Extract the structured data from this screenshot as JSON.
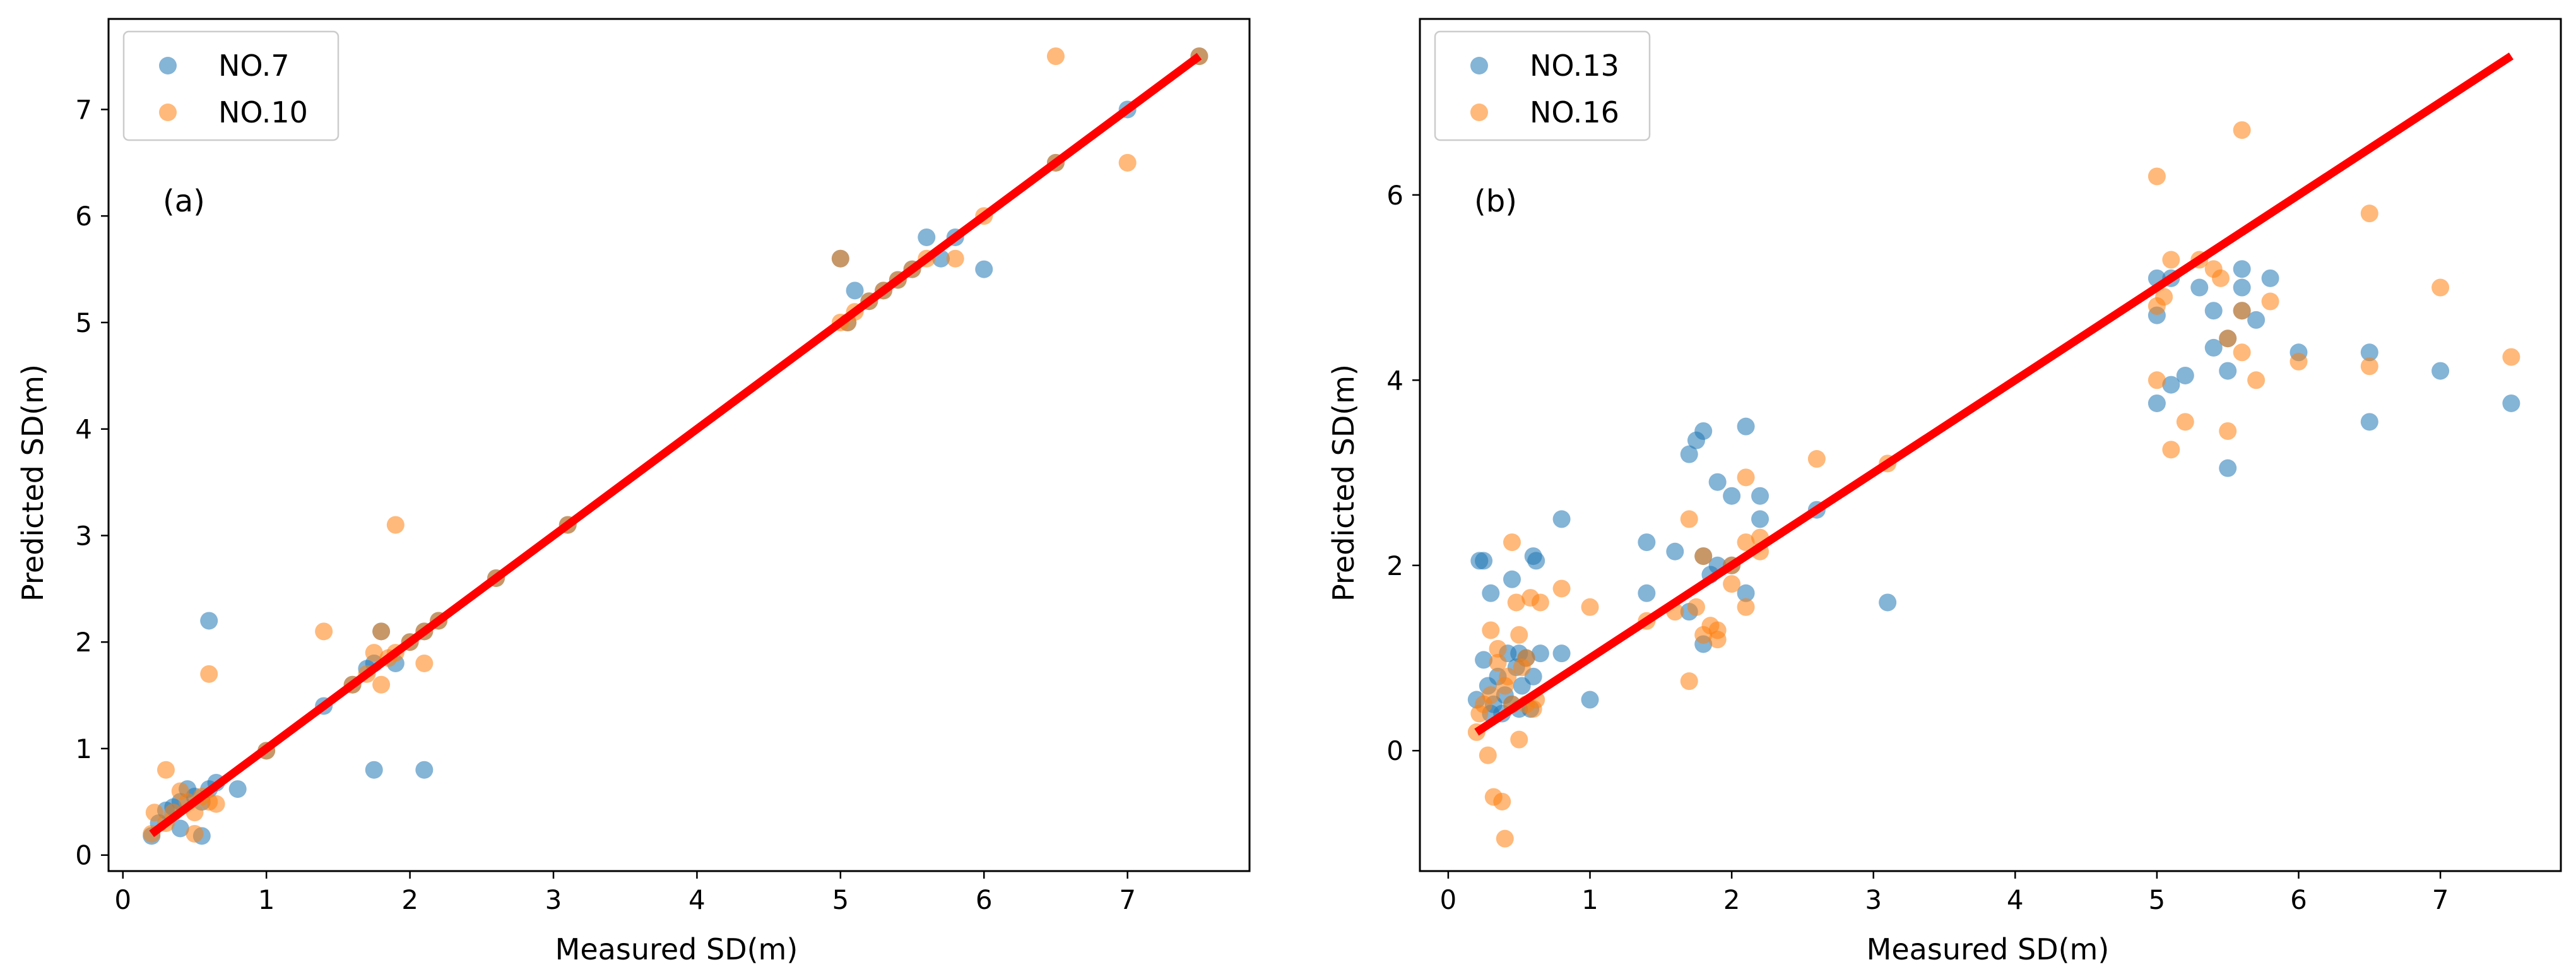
{
  "colors": {
    "series_a": "#1f77b4",
    "series_b": "#ff7f0e",
    "fit_line": "#ff0000"
  },
  "chart_data": [
    {
      "type": "scatter",
      "panel_label": "(a)",
      "xlabel": "Measured SD(m)",
      "ylabel": "Predicted SD(m)",
      "xlim": [
        -0.1,
        7.85
      ],
      "ylim": [
        -0.15,
        7.85
      ],
      "xticks": [
        0,
        1,
        2,
        3,
        4,
        5,
        6,
        7
      ],
      "yticks": [
        0,
        1,
        2,
        3,
        4,
        5,
        6,
        7
      ],
      "fit_line": {
        "x": [
          0.2,
          7.5
        ],
        "y": [
          0.2,
          7.5
        ]
      },
      "legend": "top-left",
      "series": [
        {
          "name": "NO.7",
          "x": [
            0.2,
            0.25,
            0.3,
            0.35,
            0.4,
            0.45,
            0.5,
            0.55,
            0.6,
            0.65,
            0.6,
            0.4,
            0.55,
            0.8,
            1.0,
            1.4,
            1.6,
            1.7,
            1.75,
            1.8,
            1.9,
            2.0,
            2.1,
            2.2,
            1.75,
            2.1,
            2.6,
            3.1,
            5.0,
            5.05,
            5.1,
            5.2,
            5.3,
            5.4,
            5.5,
            5.6,
            5.7,
            5.8,
            6.0,
            6.5,
            7.0,
            7.5
          ],
          "y": [
            0.18,
            0.3,
            0.42,
            0.45,
            0.5,
            0.62,
            0.55,
            0.5,
            0.62,
            0.68,
            2.2,
            0.25,
            0.18,
            0.62,
            0.98,
            1.4,
            1.6,
            1.75,
            1.8,
            2.1,
            1.8,
            2.0,
            2.1,
            2.2,
            0.8,
            0.8,
            2.6,
            3.1,
            5.6,
            5.0,
            5.3,
            5.2,
            5.3,
            5.4,
            5.5,
            5.8,
            5.6,
            5.8,
            5.5,
            6.5,
            7.0,
            7.5
          ]
        },
        {
          "name": "NO.10",
          "x": [
            0.2,
            0.22,
            0.3,
            0.35,
            0.4,
            0.45,
            0.5,
            0.55,
            0.6,
            0.65,
            0.3,
            0.6,
            0.5,
            1.0,
            1.4,
            1.6,
            1.7,
            1.75,
            1.8,
            1.85,
            1.9,
            2.0,
            2.1,
            2.1,
            2.2,
            1.9,
            1.8,
            2.6,
            3.1,
            5.0,
            5.0,
            5.05,
            5.1,
            5.2,
            5.3,
            5.4,
            5.5,
            5.6,
            5.8,
            6.0,
            6.5,
            6.5,
            7.0,
            7.5
          ],
          "y": [
            0.2,
            0.4,
            0.3,
            0.4,
            0.6,
            0.5,
            0.4,
            0.55,
            0.5,
            0.48,
            0.8,
            1.7,
            0.2,
            0.98,
            2.1,
            1.6,
            1.7,
            1.9,
            1.6,
            1.85,
            3.1,
            2.0,
            2.1,
            1.8,
            2.2,
            1.9,
            2.1,
            2.6,
            3.1,
            5.6,
            5.0,
            5.0,
            5.1,
            5.2,
            5.3,
            5.4,
            5.5,
            5.6,
            5.6,
            6.0,
            6.5,
            7.5,
            6.5,
            7.5
          ]
        }
      ]
    },
    {
      "type": "scatter",
      "panel_label": "(b)",
      "xlabel": "Measured SD(m)",
      "ylabel": "Predicted SD(m)",
      "xlim": [
        -0.2,
        7.85
      ],
      "ylim": [
        -1.3,
        7.9
      ],
      "xticks": [
        0,
        1,
        2,
        3,
        4,
        5,
        6,
        7
      ],
      "yticks": [
        0,
        2,
        4,
        6
      ],
      "fit_line": {
        "x": [
          0.2,
          7.5
        ],
        "y": [
          0.2,
          7.5
        ]
      },
      "legend": "top-left",
      "series": [
        {
          "name": "NO.13",
          "x": [
            0.2,
            0.22,
            0.25,
            0.25,
            0.28,
            0.3,
            0.32,
            0.35,
            0.38,
            0.4,
            0.42,
            0.45,
            0.48,
            0.5,
            0.52,
            0.55,
            0.58,
            0.6,
            0.62,
            0.65,
            0.3,
            0.45,
            0.5,
            0.6,
            0.8,
            1.0,
            0.8,
            1.4,
            1.4,
            1.6,
            1.7,
            1.7,
            1.75,
            1.8,
            1.8,
            1.85,
            1.9,
            1.9,
            2.0,
            2.0,
            2.1,
            2.1,
            2.2,
            2.2,
            1.8,
            2.6,
            3.1,
            5.0,
            5.0,
            5.0,
            5.1,
            5.1,
            5.2,
            5.3,
            5.4,
            5.4,
            5.5,
            5.5,
            5.5,
            5.6,
            5.6,
            5.6,
            5.7,
            5.8,
            6.0,
            6.5,
            6.5,
            7.0,
            7.5
          ],
          "y": [
            0.55,
            2.05,
            0.98,
            2.05,
            0.7,
            1.7,
            0.5,
            0.8,
            0.4,
            0.6,
            1.05,
            0.5,
            0.9,
            0.45,
            0.7,
            1.0,
            0.45,
            2.1,
            2.05,
            1.05,
            0.4,
            1.85,
            1.05,
            0.8,
            2.5,
            0.55,
            1.05,
            2.25,
            1.7,
            2.15,
            3.2,
            1.5,
            3.35,
            3.45,
            2.1,
            1.9,
            2.9,
            2.0,
            2.75,
            2.0,
            3.5,
            1.7,
            2.75,
            2.5,
            1.15,
            2.6,
            1.6,
            5.1,
            4.7,
            3.75,
            5.1,
            3.95,
            4.05,
            5.0,
            4.75,
            4.35,
            4.45,
            3.05,
            4.1,
            5.2,
            5.0,
            4.75,
            4.65,
            5.1,
            4.3,
            4.3,
            3.55,
            4.1,
            3.75
          ]
        },
        {
          "name": "NO.16",
          "x": [
            0.2,
            0.22,
            0.25,
            0.28,
            0.3,
            0.3,
            0.32,
            0.35,
            0.35,
            0.38,
            0.4,
            0.4,
            0.42,
            0.45,
            0.45,
            0.48,
            0.5,
            0.52,
            0.55,
            0.55,
            0.58,
            0.6,
            0.62,
            0.65,
            0.5,
            0.8,
            1.0,
            1.4,
            1.6,
            1.7,
            1.7,
            1.75,
            1.8,
            1.8,
            1.85,
            1.9,
            1.9,
            2.0,
            2.0,
            2.1,
            2.1,
            2.1,
            2.2,
            2.2,
            2.6,
            3.1,
            5.0,
            5.0,
            5.0,
            5.05,
            5.1,
            5.1,
            5.2,
            5.3,
            5.4,
            5.45,
            5.5,
            5.5,
            5.6,
            5.6,
            5.6,
            5.7,
            5.8,
            6.0,
            6.5,
            6.5,
            7.0,
            7.5
          ],
          "y": [
            0.2,
            0.4,
            0.5,
            -0.05,
            0.6,
            1.3,
            -0.5,
            0.95,
            1.1,
            -0.55,
            0.7,
            -0.95,
            0.8,
            0.5,
            2.25,
            1.6,
            0.12,
            0.9,
            1.0,
            0.5,
            1.65,
            0.45,
            0.55,
            1.6,
            1.25,
            1.75,
            1.55,
            1.4,
            1.5,
            2.5,
            0.75,
            1.55,
            2.1,
            1.25,
            1.35,
            1.2,
            1.3,
            1.8,
            2.0,
            2.95,
            2.25,
            1.55,
            2.15,
            2.3,
            3.15,
            3.1,
            6.2,
            4.8,
            4.0,
            4.9,
            5.3,
            3.25,
            3.55,
            5.3,
            5.2,
            5.1,
            4.45,
            3.45,
            6.7,
            4.75,
            4.3,
            4.0,
            4.85,
            4.2,
            5.8,
            4.15,
            5.0,
            4.25
          ]
        }
      ]
    }
  ]
}
